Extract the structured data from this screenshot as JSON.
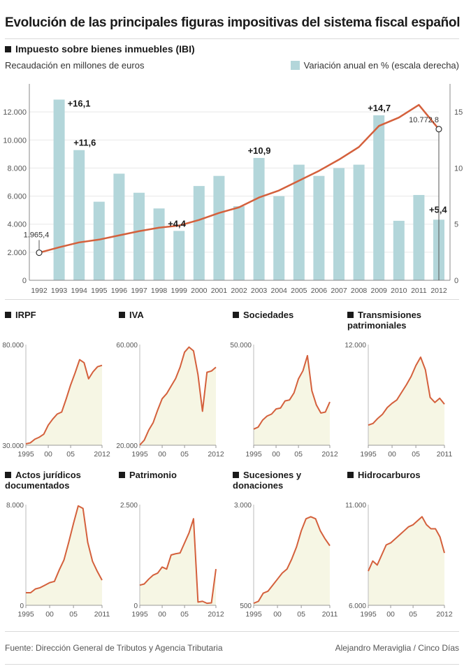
{
  "title": "Evolución de las principales figuras impositivas del sistema fiscal español",
  "main_section": "Impuesto sobre bienes inmuebles (IBI)",
  "left_axis_label": "Recaudación en millones de euros",
  "right_legend": "Variación anual en % (escala derecha)",
  "colors": {
    "bar": "#b3d6da",
    "line": "#d4603c",
    "fill": "#f6f6e4",
    "axis": "#888888"
  },
  "chart_data": [
    {
      "id": "ibi",
      "type": "bar+line",
      "title": "Impuesto sobre bienes inmuebles (IBI)",
      "categories": [
        "1992",
        "1993",
        "1994",
        "1995",
        "1996",
        "1997",
        "1998",
        "1999",
        "2000",
        "2001",
        "2002",
        "2003",
        "2004",
        "2005",
        "2006",
        "2007",
        "2008",
        "2009",
        "2010",
        "2011",
        "2012"
      ],
      "bars": {
        "name": "Variación anual en % (escala derecha)",
        "values": [
          null,
          16.1,
          11.6,
          7.0,
          9.5,
          7.8,
          6.4,
          4.4,
          8.4,
          9.3,
          6.6,
          10.9,
          7.5,
          10.3,
          9.3,
          10.0,
          10.3,
          14.7,
          5.3,
          7.6,
          5.4
        ]
      },
      "line": {
        "name": "Recaudación en millones de euros",
        "values": [
          1965.4,
          2350,
          2700,
          2900,
          3200,
          3500,
          3750,
          3900,
          4300,
          4800,
          5200,
          5900,
          6400,
          7100,
          7800,
          8600,
          9500,
          11000,
          11600,
          12500,
          10772.8
        ]
      },
      "yleft": {
        "ticks": [
          "0",
          "2.000",
          "4.000",
          "6.000",
          "8.000",
          "10.000",
          "12.000"
        ],
        "ylim": [
          0,
          14000
        ]
      },
      "yright": {
        "ticks": [
          "0",
          "5",
          "10",
          "15"
        ],
        "ylim": [
          0,
          17.5
        ]
      },
      "annotations": [
        {
          "cat": "1993",
          "text": "+16,1",
          "series": "bars"
        },
        {
          "cat": "1994",
          "text": "+11,6",
          "series": "bars"
        },
        {
          "cat": "1999",
          "text": "+4,4",
          "series": "bars"
        },
        {
          "cat": "2003",
          "text": "+10,9",
          "series": "bars"
        },
        {
          "cat": "2009",
          "text": "+14,7",
          "series": "bars"
        },
        {
          "cat": "2012",
          "text": "+5,4",
          "series": "bars"
        }
      ],
      "point_labels": [
        {
          "cat": "1992",
          "text": "1.965,4"
        },
        {
          "cat": "2012",
          "text": "10.772,8"
        }
      ]
    },
    {
      "id": "irpf",
      "type": "area",
      "title": "IRPF",
      "ymin_label": "30.000",
      "ymax_label": "80.000",
      "ylim": [
        30000,
        80000
      ],
      "x": [
        1995,
        1996,
        1997,
        1998,
        1999,
        2000,
        2001,
        2002,
        2003,
        2004,
        2005,
        2006,
        2007,
        2008,
        2009,
        2010,
        2011,
        2012
      ],
      "values": [
        30700,
        31200,
        33000,
        34000,
        35500,
        40000,
        43000,
        45500,
        46500,
        53000,
        60000,
        66000,
        72500,
        71000,
        63000,
        66500,
        69000,
        69700
      ],
      "xticks": [
        "1995",
        "00",
        "05",
        "2012"
      ]
    },
    {
      "id": "iva",
      "type": "area",
      "title": "IVA",
      "ymin_label": "20.000",
      "ymax_label": "60.000",
      "ylim": [
        20000,
        60000
      ],
      "x": [
        1995,
        1996,
        1997,
        1998,
        1999,
        2000,
        2001,
        2002,
        2003,
        2004,
        2005,
        2006,
        2007,
        2008,
        2009,
        2010,
        2011,
        2012
      ],
      "values": [
        20100,
        22000,
        26000,
        29000,
        34000,
        38500,
        40500,
        43500,
        46500,
        51000,
        57000,
        59000,
        57500,
        48000,
        33500,
        49000,
        49500,
        51000
      ],
      "xticks": [
        "1995",
        "00",
        "05",
        "2012"
      ]
    },
    {
      "id": "sociedades",
      "type": "area",
      "title": "Sociedades",
      "ymin_label": "",
      "ymax_label": "50.000",
      "ylim": [
        0,
        50000
      ],
      "x": [
        1995,
        1996,
        1997,
        1998,
        1999,
        2000,
        2001,
        2002,
        2003,
        2004,
        2005,
        2006,
        2007,
        2008,
        2009,
        2010,
        2011,
        2012
      ],
      "values": [
        8000,
        9000,
        12500,
        14500,
        15500,
        18000,
        18500,
        22000,
        22500,
        26000,
        33000,
        37000,
        44500,
        27000,
        20000,
        16000,
        16500,
        21500
      ],
      "xticks": [
        "1995",
        "00",
        "05",
        "2012"
      ]
    },
    {
      "id": "transmisiones",
      "type": "area",
      "title": "Transmisiones patrimoniales",
      "ymin_label": "",
      "ymax_label": "12.000",
      "ylim": [
        0,
        12000
      ],
      "x": [
        1995,
        1996,
        1997,
        1998,
        1999,
        2000,
        2001,
        2002,
        2003,
        2004,
        2005,
        2006,
        2007,
        2008,
        2009,
        2010,
        2011
      ],
      "values": [
        2400,
        2600,
        3200,
        3700,
        4500,
        5000,
        5400,
        6300,
        7200,
        8200,
        9500,
        10500,
        9000,
        5700,
        5100,
        5600,
        4900
      ],
      "xticks": [
        "1995",
        "00",
        "05",
        "2011"
      ]
    },
    {
      "id": "ajd",
      "type": "area",
      "title": "Actos jurídicos documentados",
      "ymin_label": "0",
      "ymax_label": "8.000",
      "ylim": [
        0,
        8000
      ],
      "x": [
        1995,
        1996,
        1997,
        1998,
        1999,
        2000,
        2001,
        2002,
        2003,
        2004,
        2005,
        2006,
        2007,
        2008,
        2009,
        2010,
        2011
      ],
      "values": [
        1000,
        1000,
        1300,
        1400,
        1600,
        1800,
        1900,
        2800,
        3600,
        5000,
        6500,
        7900,
        7700,
        5000,
        3500,
        2700,
        2000
      ],
      "xticks": [
        "1995",
        "00",
        "05",
        "2011"
      ]
    },
    {
      "id": "patrimonio",
      "type": "area",
      "title": "Patrimonio",
      "ymin_label": "0",
      "ymax_label": "2.500",
      "ylim": [
        0,
        2500
      ],
      "x": [
        1995,
        1996,
        1997,
        1998,
        1999,
        2000,
        2001,
        2002,
        2003,
        2004,
        2005,
        2006,
        2007,
        2008,
        2009,
        2010,
        2011,
        2012
      ],
      "values": [
        500,
        530,
        650,
        750,
        800,
        950,
        900,
        1250,
        1280,
        1300,
        1550,
        1800,
        2150,
        80,
        100,
        50,
        60,
        900
      ],
      "xticks": [
        "1995",
        "00",
        "05",
        "2012"
      ]
    },
    {
      "id": "sucesiones",
      "type": "area",
      "title": "Sucesiones y donaciones",
      "ymin_label": "500",
      "ymax_label": "3.000",
      "ylim": [
        500,
        3000
      ],
      "x": [
        1995,
        1996,
        1997,
        1998,
        1999,
        2000,
        2001,
        2002,
        2003,
        2004,
        2005,
        2006,
        2007,
        2008,
        2009,
        2010,
        2011
      ],
      "values": [
        550,
        600,
        800,
        850,
        1000,
        1150,
        1300,
        1400,
        1650,
        1950,
        2350,
        2650,
        2700,
        2650,
        2350,
        2150,
        1980
      ],
      "xticks": [
        "1995",
        "00",
        "05",
        "2011"
      ]
    },
    {
      "id": "hidrocarburos",
      "type": "area",
      "title": "Hidrocarburos",
      "ymin_label": "6.000",
      "ymax_label": "11.000",
      "ylim": [
        6000,
        11000
      ],
      "x": [
        1995,
        1996,
        1997,
        1998,
        1999,
        2000,
        2001,
        2002,
        2003,
        2004,
        2005,
        2006,
        2007,
        2008,
        2009,
        2010,
        2011,
        2012
      ],
      "values": [
        7700,
        8200,
        8000,
        8500,
        9000,
        9100,
        9300,
        9500,
        9700,
        9900,
        10000,
        10200,
        10400,
        10000,
        9800,
        9800,
        9400,
        8600
      ],
      "xticks": [
        "1995",
        "00",
        "05",
        "2012"
      ]
    }
  ],
  "footer": {
    "source": "Fuente: Dirección General de Tributos y Agencia Tributaria",
    "credit": "Alejandro Meraviglia / Cinco Días"
  }
}
